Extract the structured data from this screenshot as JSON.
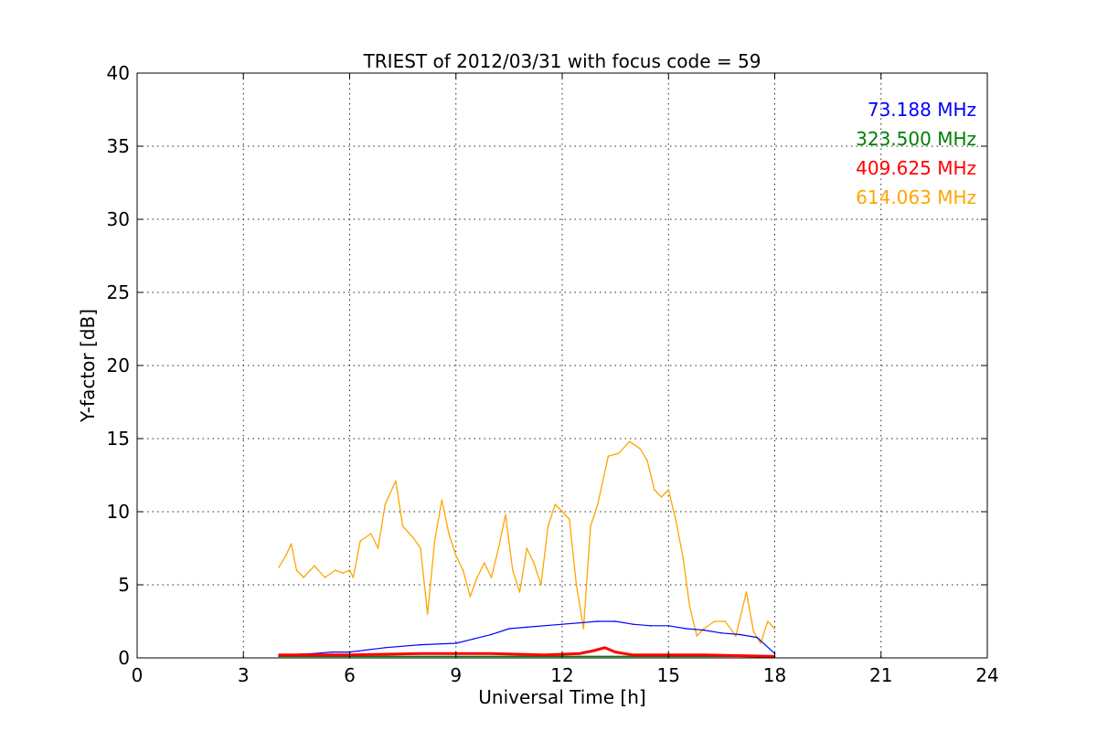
{
  "chart_data": {
    "type": "line",
    "title": "TRIEST of 2012/03/31 with focus code = 59",
    "xlabel": "Universal Time [h]",
    "ylabel": "Y-factor [dB]",
    "xlim": [
      0,
      24
    ],
    "ylim": [
      0,
      40
    ],
    "xticks": [
      0,
      3,
      6,
      9,
      12,
      15,
      18,
      21,
      24
    ],
    "yticks": [
      0,
      5,
      10,
      15,
      20,
      25,
      30,
      35,
      40
    ],
    "grid": true,
    "legend_position": "top-right",
    "series": [
      {
        "name": "73.188 MHz",
        "color": "#0000ff",
        "x": [
          4.0,
          5.0,
          5.5,
          6.0,
          7.0,
          8.0,
          9.0,
          9.5,
          10.0,
          10.5,
          11.0,
          12.0,
          13.0,
          13.5,
          14.0,
          14.5,
          15.0,
          15.5,
          16.0,
          16.5,
          17.0,
          17.5,
          18.0
        ],
        "y": [
          0.2,
          0.3,
          0.4,
          0.4,
          0.7,
          0.9,
          1.0,
          1.3,
          1.6,
          2.0,
          2.1,
          2.3,
          2.5,
          2.5,
          2.3,
          2.2,
          2.2,
          2.0,
          1.9,
          1.7,
          1.6,
          1.4,
          0.3
        ]
      },
      {
        "name": "323.500 MHz",
        "color": "#008000",
        "x": [
          4.0,
          18.0
        ],
        "y": [
          0.1,
          0.1
        ]
      },
      {
        "name": "409.625 MHz",
        "color": "#ff0000",
        "x": [
          4.0,
          6.0,
          8.0,
          10.0,
          11.5,
          12.5,
          12.9,
          13.2,
          13.5,
          14.0,
          16.0,
          18.0
        ],
        "y": [
          0.2,
          0.2,
          0.3,
          0.3,
          0.2,
          0.3,
          0.5,
          0.7,
          0.4,
          0.2,
          0.2,
          0.1
        ]
      },
      {
        "name": "614.063 MHz",
        "color": "#ffa500",
        "x": [
          4.0,
          4.2,
          4.35,
          4.5,
          4.7,
          5.0,
          5.3,
          5.6,
          5.8,
          6.0,
          6.1,
          6.3,
          6.6,
          6.8,
          7.0,
          7.3,
          7.5,
          7.8,
          8.0,
          8.2,
          8.4,
          8.6,
          8.8,
          9.0,
          9.2,
          9.4,
          9.6,
          9.8,
          10.0,
          10.2,
          10.4,
          10.6,
          10.8,
          11.0,
          11.2,
          11.4,
          11.6,
          11.8,
          12.0,
          12.2,
          12.4,
          12.6,
          12.8,
          13.0,
          13.3,
          13.6,
          13.9,
          14.2,
          14.4,
          14.6,
          14.8,
          15.0,
          15.2,
          15.4,
          15.6,
          15.8,
          16.0,
          16.3,
          16.6,
          16.9,
          17.2,
          17.4,
          17.6,
          17.8,
          18.0
        ],
        "y": [
          6.2,
          7.0,
          7.8,
          6.0,
          5.5,
          6.3,
          5.5,
          6.0,
          5.8,
          6.0,
          5.5,
          8.0,
          8.5,
          7.5,
          10.5,
          12.1,
          9.0,
          8.2,
          7.5,
          3.0,
          8.0,
          10.8,
          8.5,
          7.0,
          6.0,
          4.2,
          5.5,
          6.5,
          5.5,
          7.5,
          9.8,
          6.0,
          4.5,
          7.5,
          6.5,
          5.0,
          9.0,
          10.5,
          10.0,
          9.5,
          5.0,
          2.0,
          9.0,
          10.5,
          13.8,
          14.0,
          14.8,
          14.3,
          13.5,
          11.5,
          11.0,
          11.5,
          9.5,
          7.0,
          3.5,
          1.5,
          2.0,
          2.5,
          2.5,
          1.5,
          4.5,
          1.8,
          1.0,
          2.5,
          2.0
        ]
      }
    ]
  }
}
